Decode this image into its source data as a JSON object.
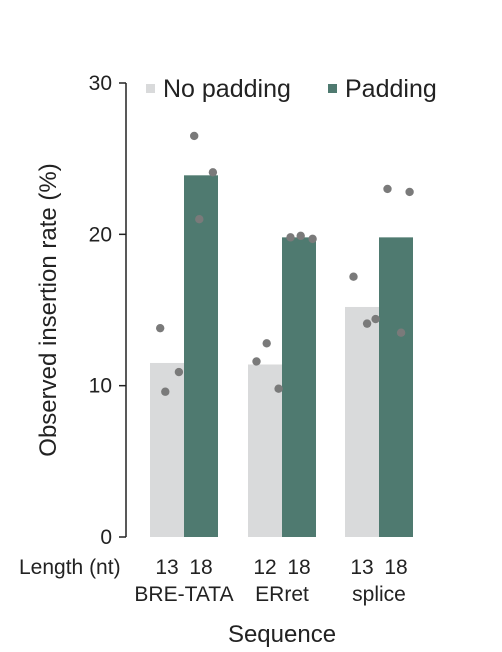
{
  "chart_data": {
    "type": "bar",
    "ylabel": "Observed insertion rate (%)",
    "xlabel": "Sequence",
    "ylim": [
      0,
      30
    ],
    "yticks": [
      0,
      10,
      20,
      30
    ],
    "length_label": "Length (nt)",
    "groups": [
      "BRE-TATA",
      "ERret",
      "splice"
    ],
    "legend_position": "top",
    "grid": false,
    "series": [
      {
        "name": "No padding",
        "color": "#d9dadb",
        "lengths": [
          "13",
          "12",
          "13"
        ],
        "values": [
          11.5,
          11.4,
          15.2
        ],
        "replicates": [
          [
            13.8,
            10.9,
            9.6
          ],
          [
            12.8,
            11.6,
            9.8
          ],
          [
            17.2,
            14.4,
            14.1
          ]
        ]
      },
      {
        "name": "Padding",
        "color": "#4f7a70",
        "lengths": [
          "18",
          "18",
          "18"
        ],
        "values": [
          23.9,
          19.8,
          19.8
        ],
        "replicates": [
          [
            26.5,
            24.1,
            21.0
          ],
          [
            19.9,
            19.8,
            19.7
          ],
          [
            23.0,
            22.8,
            13.5
          ]
        ]
      }
    ],
    "point_color": "#7a7a7a"
  }
}
